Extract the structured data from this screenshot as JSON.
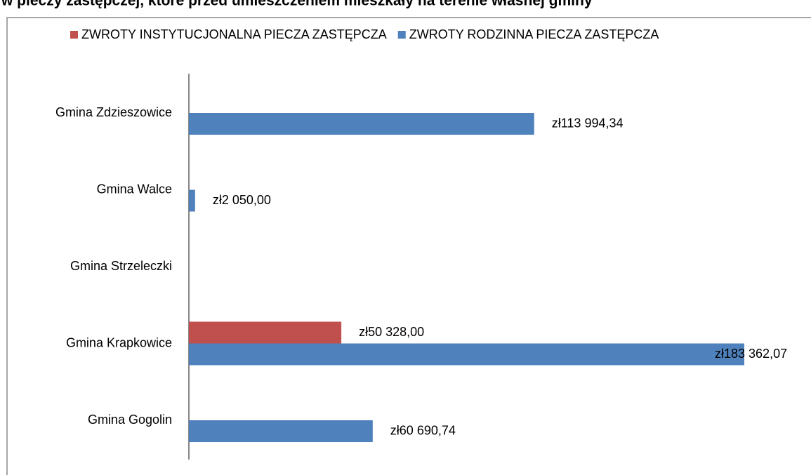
{
  "chart_data": {
    "type": "hbar",
    "title": "w pieczy zastępczej, które przed umieszczeniem mieszkały na terenie własnej gminy",
    "categories": [
      "Gmina Zdzieszowice",
      "Gmina Walce",
      "Gmina Strzeleczki",
      "Gmina Krapkowice",
      "Gmina Gogolin"
    ],
    "legend": "top",
    "series": [
      {
        "name": "ZWROTY INSTYTUCJONALNA PIECZA ZASTĘPCZA",
        "color": "#c0504d",
        "values": [
          null,
          null,
          null,
          50328.0,
          null
        ],
        "value_labels": [
          null,
          null,
          null,
          "zł50 328,00",
          null
        ]
      },
      {
        "name": "ZWROTY RODZINNA PIECZA ZASTĘPCZA",
        "color": "#4f81bd",
        "values": [
          113994.34,
          2050.0,
          null,
          183362.07,
          60690.74
        ],
        "value_labels": [
          "zł113 994,34",
          "zł2 050,00",
          null,
          "zł183 362,07",
          "zł60 690,74"
        ]
      }
    ]
  }
}
